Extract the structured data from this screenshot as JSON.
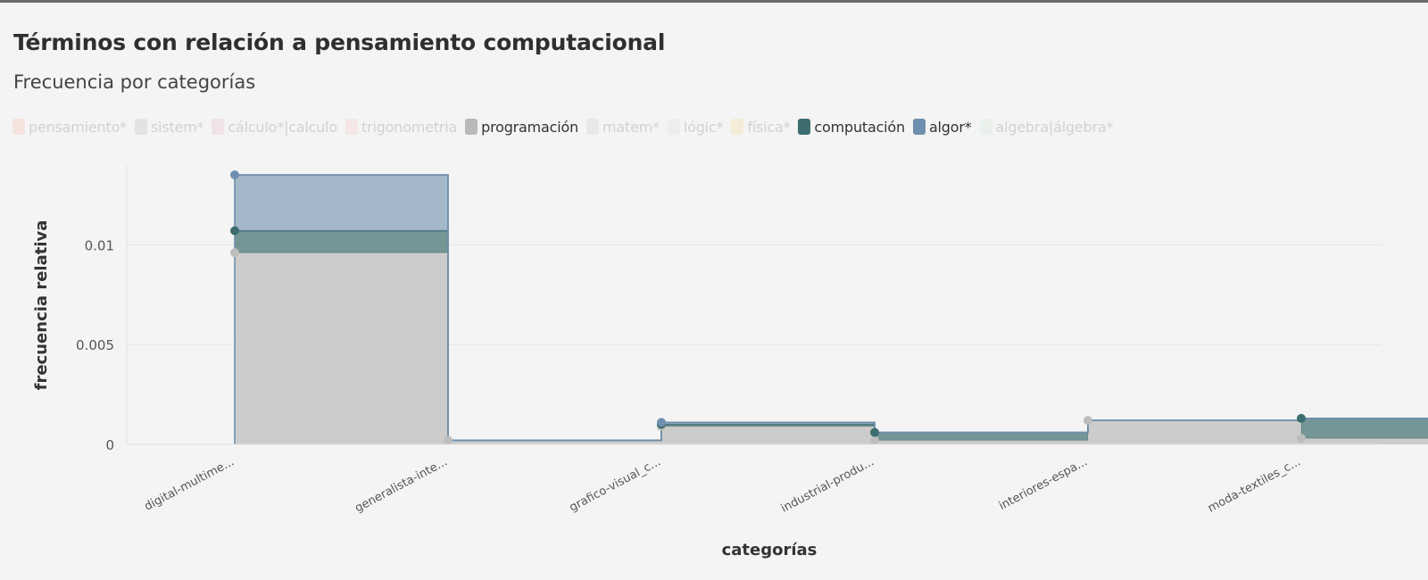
{
  "title": "Términos con relación a pensamiento computacional",
  "subtitle": "Frecuencia por categorías",
  "legend": [
    {
      "label": "pensamiento*",
      "color": "#f4b6a0",
      "active": false
    },
    {
      "label": "sistem*",
      "color": "#b8b8b8",
      "active": false
    },
    {
      "label": "cálculo*|calculo",
      "color": "#e8b4c4",
      "active": false
    },
    {
      "label": "trigonometria",
      "color": "#f7c6c0",
      "active": false
    },
    {
      "label": "programación",
      "color": "#b9b9b9",
      "active": true
    },
    {
      "label": "matem*",
      "color": "#c8c8d0",
      "active": false
    },
    {
      "label": "lógic*",
      "color": "#d6dadd",
      "active": false
    },
    {
      "label": "física*",
      "color": "#f5d98a",
      "active": false
    },
    {
      "label": "computación",
      "color": "#3d6d6e",
      "active": true
    },
    {
      "label": "algor*",
      "color": "#6e8fad",
      "active": true
    },
    {
      "label": "algebra|álgebra*",
      "color": "#cfe6d5",
      "active": false
    }
  ],
  "chart_data": {
    "type": "area",
    "stacked": true,
    "xlabel": "categorías",
    "ylabel": "frecuencia relativa",
    "ylim": [
      0,
      0.0135
    ],
    "yticks": [
      0,
      0.005,
      0.01
    ],
    "ytick_labels": [
      "0",
      "0.005",
      "0.01"
    ],
    "grid": true,
    "categories": [
      "digital-multime...",
      "generalista-inte...",
      "grafico-visual_c...",
      "industrial-produ...",
      "interiores-espa...",
      "moda-textiles_c..."
    ],
    "series": [
      {
        "name": "programación",
        "color": "#cccccc",
        "values": [
          0.0096,
          0.0002,
          0.0009,
          0.0002,
          0.0012,
          0.0003
        ]
      },
      {
        "name": "computación",
        "color": "#3d6d6e",
        "values": [
          0.0011,
          0.0,
          0.0001,
          0.0004,
          0.0,
          0.001
        ]
      },
      {
        "name": "algor*",
        "color": "#6e8fad",
        "values": [
          0.0028,
          0.0,
          0.0001,
          0.0,
          0.0,
          0.0
        ]
      }
    ]
  }
}
